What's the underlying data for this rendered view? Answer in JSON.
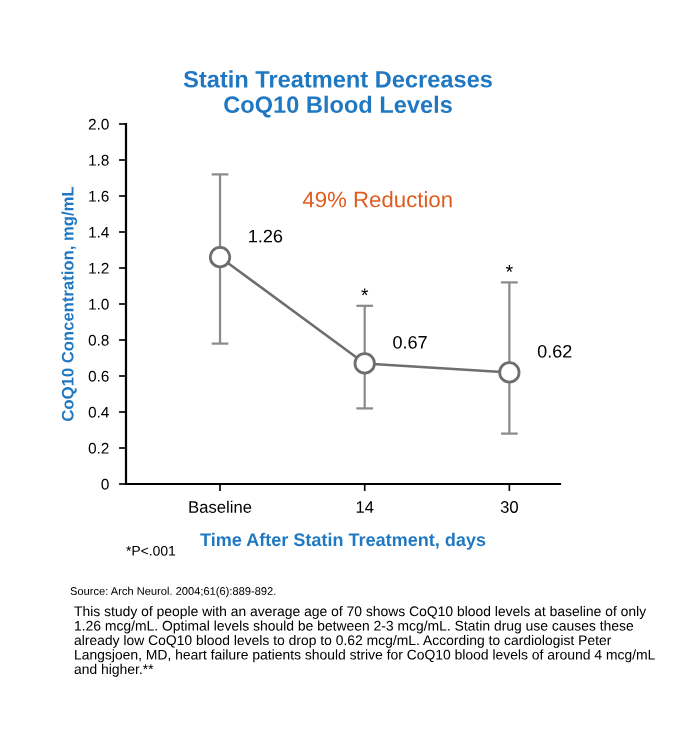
{
  "chart_data": {
    "type": "line",
    "title": "Statin Treatment Decreases\nCoQ10 Blood Levels",
    "xlabel": "Time After Statin Treatment, days",
    "ylabel": "CoQ10 Concentration, mg/mL",
    "categories": [
      "Baseline",
      "14",
      "30"
    ],
    "series": [
      {
        "color": "#6d6e71",
        "values": [
          1.26,
          0.67,
          0.62
        ],
        "errors": [
          [
            0.78,
            1.72
          ],
          [
            0.42,
            0.99
          ],
          [
            0.28,
            1.12
          ]
        ]
      }
    ],
    "data_labels": true,
    "marker": "circle",
    "line_style": "solid",
    "grid": false,
    "legend": false,
    "ylim": [
      0,
      2.0
    ],
    "yticks": [
      0,
      0.2,
      0.4,
      0.6,
      0.8,
      {
        "value": 1.0,
        "label": "1.0"
      },
      1.2,
      1.4,
      1.6,
      1.8,
      {
        "value": 2.0,
        "label": "2.0"
      }
    ],
    "annotations": [
      "49% Reduction",
      {
        "text": "*",
        "x": "14",
        "y": 1.04
      },
      {
        "text": "*",
        "x": "30",
        "y": 1.17
      },
      "*P<.001",
      "Source: Arch Neurol. 2004;61(6):889-892.",
      "This study of people with an average age of 70 shows CoQ10 blood levels at baseline of only 1.26 mcg/mL. Optimal levels should be between 2-3 mcg/mL. Statin drug use causes these already low CoQ10 blood levels to drop to 0.62 mcg/mL. According to cardiologist Peter Langsjoen, MD, heart failure patients should strive for CoQ10 blood levels of around 4 mcg/mL and higher.**"
    ]
  }
}
